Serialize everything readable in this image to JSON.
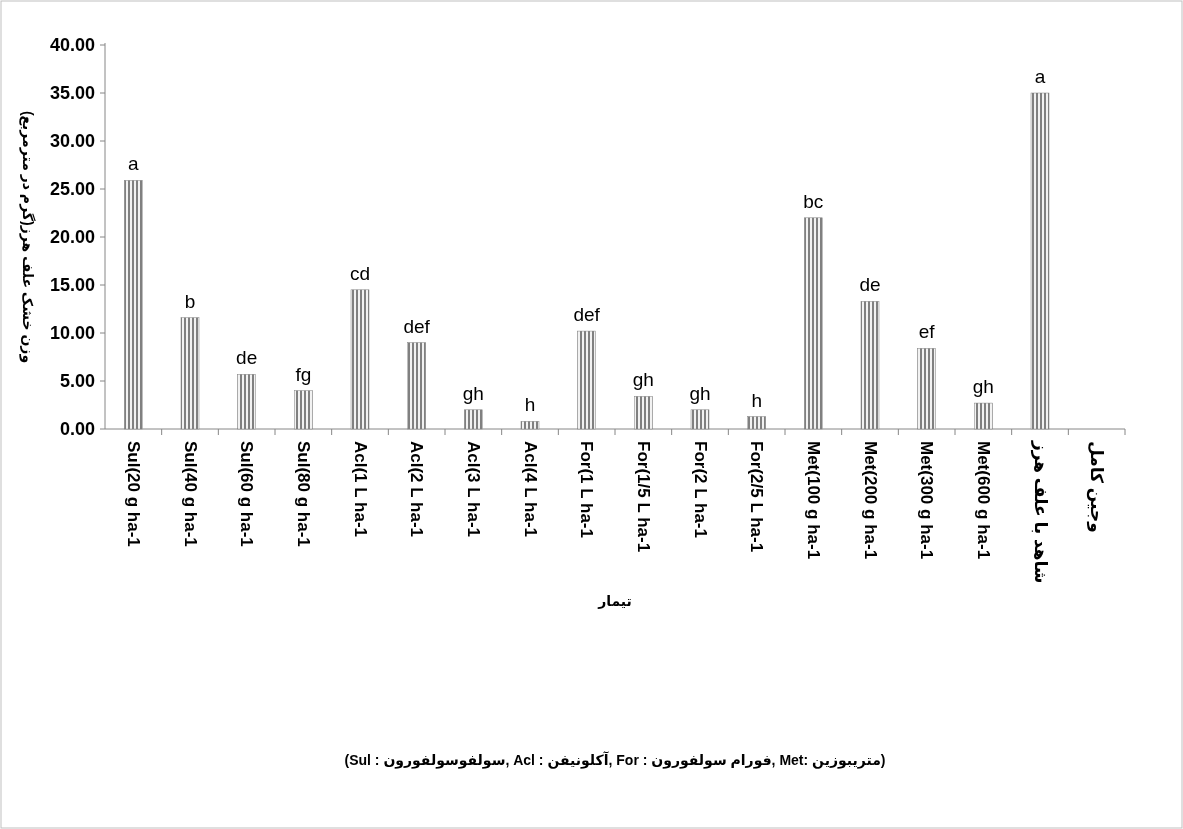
{
  "chart_data": {
    "type": "bar",
    "categories": [
      "Sul(20 g ha-1",
      "Sul(40 g ha-1",
      "Sul(60 g ha-1",
      "Sul(80 g ha-1",
      "Acl(1 L ha-1",
      "Acl(2 L ha-1",
      "Acl(3 L ha-1",
      "Acl(4 L ha-1",
      "For(1 L ha-1",
      "For(1/5 L ha-1",
      "For(2 L ha-1",
      "For(2/5 L ha-1",
      "Met(100 g ha-1",
      "Met(200 g ha-1",
      "Met(300 g ha-1",
      "Met(600 g ha-1",
      "شاهد با علف هرز",
      "وجین کامل"
    ],
    "values": [
      25.9,
      11.6,
      5.7,
      4.0,
      14.5,
      9.0,
      2.0,
      0.8,
      10.2,
      3.4,
      2.0,
      1.3,
      22.0,
      13.3,
      8.4,
      2.7,
      35.0,
      0
    ],
    "value_labels": [
      "a",
      "b",
      "de",
      "fg",
      "cd",
      "def",
      "gh",
      "h",
      "def",
      "gh",
      "gh",
      "h",
      "bc",
      "de",
      "ef",
      "gh",
      "a",
      null
    ],
    "color": "#808080",
    "xlabel": "تیمار",
    "ylabel": "وزن خشک علف هرز(گرم در مترمربع)",
    "annotations": [
      "(متریبوزین :Met ,فورام سولفورون : For ,آکلونیفن : Acl ,سولفوسولفورون : Sul)"
    ],
    "ylim": [
      0,
      40
    ],
    "yticks": [
      {
        "value": 0,
        "label": "0.00"
      },
      {
        "value": 5,
        "label": "5.00"
      },
      {
        "value": 10,
        "label": "10.00"
      },
      {
        "value": 15,
        "label": "15.00"
      },
      {
        "value": 20,
        "label": "20.00"
      },
      {
        "value": 25,
        "label": "25.00"
      },
      {
        "value": 30,
        "label": "30.00"
      },
      {
        "value": 35,
        "label": "35.00"
      },
      {
        "value": 40,
        "label": "40.00"
      }
    ],
    "grid": false
  }
}
